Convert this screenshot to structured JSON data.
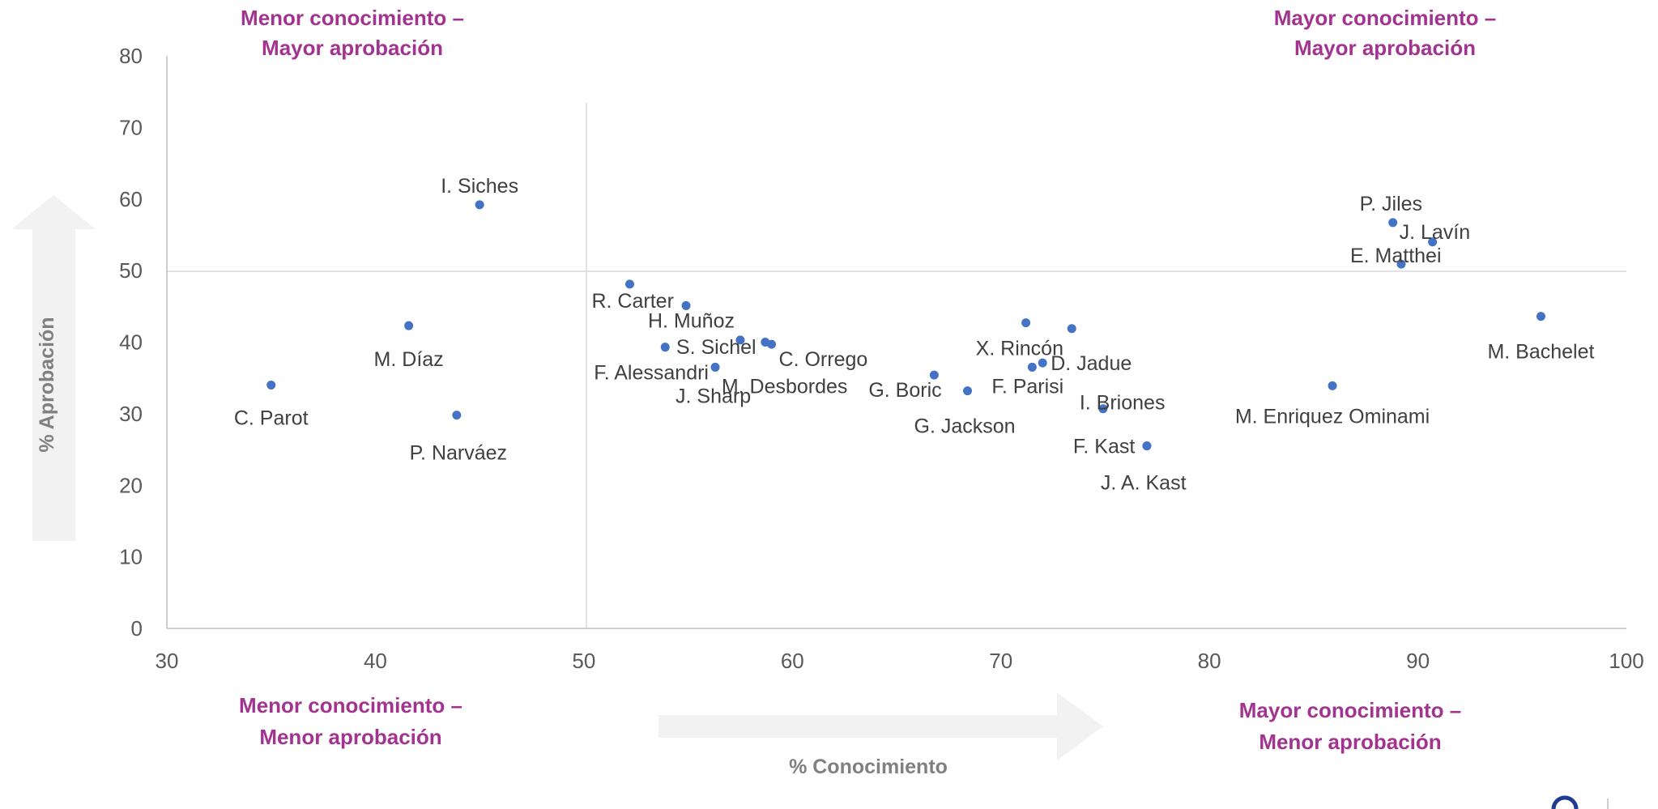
{
  "chart_data": {
    "type": "scatter",
    "xlabel": "% Conocimiento",
    "ylabel": "% Aprobación",
    "xlim": [
      30,
      100
    ],
    "ylim": [
      0,
      80
    ],
    "xticks": [
      30,
      40,
      50,
      60,
      70,
      80,
      90,
      100
    ],
    "yticks": [
      0,
      10,
      20,
      30,
      40,
      50,
      60,
      70,
      80
    ],
    "reference_lines": {
      "x": 50,
      "y": 50
    },
    "grid": false,
    "quadrants": {
      "top_left": [
        "Menor conocimiento –",
        "Mayor aprobación"
      ],
      "top_right": [
        "Mayor conocimiento –",
        "Mayor aprobación"
      ],
      "bottom_left": [
        "Menor conocimiento –",
        "Menor aprobación"
      ],
      "bottom_right": [
        "Mayor conocimiento –",
        "Menor aprobación"
      ]
    },
    "points": [
      {
        "label": "C. Parot",
        "x": 35,
        "y": 34
      },
      {
        "label": "M. Díaz",
        "x": 41.6,
        "y": 42.3
      },
      {
        "label": "P. Narváez",
        "x": 43.9,
        "y": 29.8
      },
      {
        "label": "I. Siches",
        "x": 45,
        "y": 59.2
      },
      {
        "label": "R. Carter",
        "x": 52.2,
        "y": 48.1
      },
      {
        "label": "F. Alessandri",
        "x": 53.9,
        "y": 39.3
      },
      {
        "label": "H. Muñoz",
        "x": 54.9,
        "y": 45.1
      },
      {
        "label": "J. Sharp",
        "x": 56.3,
        "y": 36.5
      },
      {
        "label": "S. Sichel",
        "x": 57.5,
        "y": 40.3
      },
      {
        "label": "M. Desbordes",
        "x": 58.7,
        "y": 40
      },
      {
        "label": "C. Orrego",
        "x": 59,
        "y": 39.7
      },
      {
        "label": "G. Boric",
        "x": 66.8,
        "y": 35.4
      },
      {
        "label": "G. Jackson",
        "x": 68.4,
        "y": 33.2
      },
      {
        "label": "X. Rincón",
        "x": 71.2,
        "y": 42.7
      },
      {
        "label": "F. Parisi",
        "x": 71.5,
        "y": 36.5
      },
      {
        "label": "D. Jadue",
        "x": 72,
        "y": 37.1
      },
      {
        "label": "",
        "x": 73.4,
        "y": 41.9
      },
      {
        "label": "I. Briones",
        "x": 74.9,
        "y": 30.7
      },
      {
        "label": "F. Kast",
        "x": 77,
        "y": 25.5
      },
      {
        "label": "J. A. Kast",
        "x": 77,
        "y": 25.5
      },
      {
        "label": "M. Enriquez Ominami",
        "x": 85.9,
        "y": 33.9
      },
      {
        "label": "P. Jiles",
        "x": 88.8,
        "y": 56.7
      },
      {
        "label": "E. Matthei",
        "x": 89.2,
        "y": 50.9
      },
      {
        "label": "J. Lavín",
        "x": 90.7,
        "y": 54
      },
      {
        "label": "M. Bachelet",
        "x": 95.9,
        "y": 43.6
      }
    ]
  },
  "colors": {
    "marker": "#4472C4",
    "quadrant_text": "#A2338F",
    "axis_arrow": "#F2F2F2",
    "axis_line": "#D9D9D9",
    "tick_text": "#595959",
    "label_text": "#404040"
  }
}
